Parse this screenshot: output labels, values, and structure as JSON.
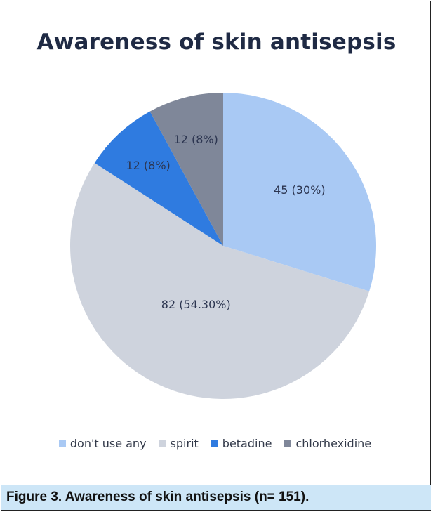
{
  "chart_data": {
    "type": "pie",
    "title": "Awareness of skin antisepsis",
    "slices": [
      {
        "label": "don't use any",
        "value": 45,
        "data_label": "45 (30%)",
        "color": "#a9c9f4"
      },
      {
        "label": "spirit",
        "value": 82,
        "data_label": "82 (54.30%)",
        "color": "#ced3dd"
      },
      {
        "label": "betadine",
        "value": 12,
        "data_label": "12 (8%)",
        "color": "#2f7be0"
      },
      {
        "label": "chlorhexidine",
        "value": 12,
        "data_label": "12 (8%)",
        "color": "#7f8799"
      }
    ],
    "legend_position": "bottom"
  },
  "caption": "Figure 3. Awareness of skin antisepsis (n= 151)."
}
